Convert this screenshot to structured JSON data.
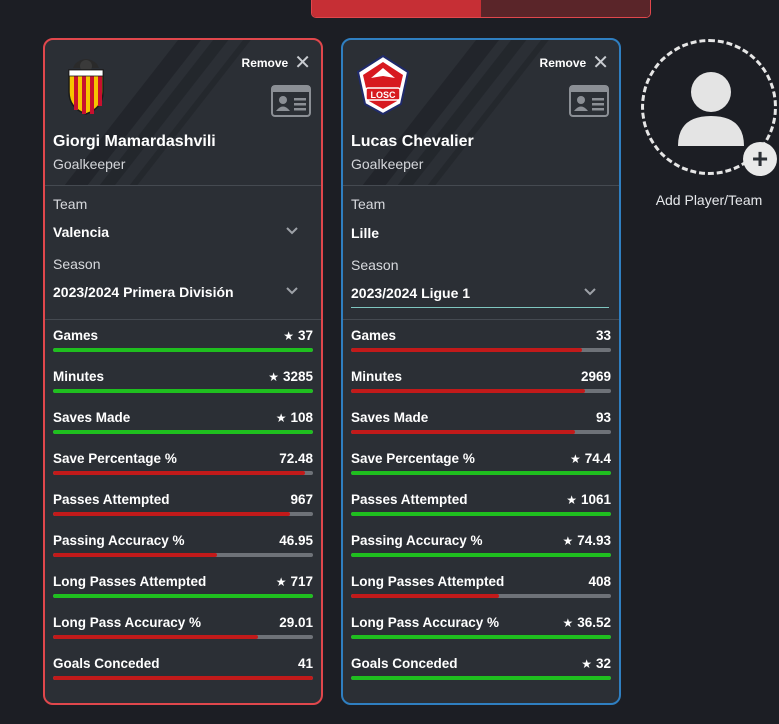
{
  "colors": {
    "good": "#1fbf1f",
    "bad": "#c21a1a",
    "track": "#6e7278",
    "card_bg": "#2b2f35",
    "red_border": "#e0474c",
    "blue_border": "#2f7fc1"
  },
  "players": [
    {
      "remove_label": "Remove",
      "name": "Giorgi Mamardashvili",
      "position": "Goalkeeper",
      "team_label": "Team",
      "team": "Valencia",
      "season_label": "Season",
      "season": "2023/2024 Primera División",
      "stats": [
        {
          "label": "Games",
          "value": "37",
          "star": true,
          "fraction": 1.0,
          "status": "good"
        },
        {
          "label": "Minutes",
          "value": "3285",
          "star": true,
          "fraction": 1.0,
          "status": "good"
        },
        {
          "label": "Saves Made",
          "value": "108",
          "star": true,
          "fraction": 1.0,
          "status": "good"
        },
        {
          "label": "Save Percentage %",
          "value": "72.48",
          "star": false,
          "fraction": 0.97,
          "status": "bad"
        },
        {
          "label": "Passes Attempted",
          "value": "967",
          "star": false,
          "fraction": 0.91,
          "status": "bad"
        },
        {
          "label": "Passing Accuracy %",
          "value": "46.95",
          "star": false,
          "fraction": 0.63,
          "status": "bad"
        },
        {
          "label": "Long Passes Attempted",
          "value": "717",
          "star": true,
          "fraction": 1.0,
          "status": "good"
        },
        {
          "label": "Long Pass Accuracy %",
          "value": "29.01",
          "star": false,
          "fraction": 0.79,
          "status": "bad"
        },
        {
          "label": "Goals Conceded",
          "value": "41",
          "star": false,
          "fraction": 1.0,
          "status": "bad"
        }
      ]
    },
    {
      "remove_label": "Remove",
      "name": "Lucas Chevalier",
      "position": "Goalkeeper",
      "team_label": "Team",
      "team": "Lille",
      "season_label": "Season",
      "season": "2023/2024 Ligue 1",
      "stats": [
        {
          "label": "Games",
          "value": "33",
          "star": false,
          "fraction": 0.89,
          "status": "bad"
        },
        {
          "label": "Minutes",
          "value": "2969",
          "star": false,
          "fraction": 0.9,
          "status": "bad"
        },
        {
          "label": "Saves Made",
          "value": "93",
          "star": false,
          "fraction": 0.86,
          "status": "bad"
        },
        {
          "label": "Save Percentage %",
          "value": "74.4",
          "star": true,
          "fraction": 1.0,
          "status": "good"
        },
        {
          "label": "Passes Attempted",
          "value": "1061",
          "star": true,
          "fraction": 1.0,
          "status": "good"
        },
        {
          "label": "Passing Accuracy %",
          "value": "74.93",
          "star": true,
          "fraction": 1.0,
          "status": "good"
        },
        {
          "label": "Long Passes Attempted",
          "value": "408",
          "star": false,
          "fraction": 0.57,
          "status": "bad"
        },
        {
          "label": "Long Pass Accuracy %",
          "value": "36.52",
          "star": true,
          "fraction": 1.0,
          "status": "good"
        },
        {
          "label": "Goals Conceded",
          "value": "32",
          "star": true,
          "fraction": 1.0,
          "status": "good"
        }
      ]
    }
  ],
  "add_player": {
    "label": "Add Player/Team",
    "icon": "user-icon"
  },
  "crests": [
    {
      "icon": "valencia-crest-icon"
    },
    {
      "icon": "lille-crest-icon",
      "text": "LOSC"
    }
  ]
}
